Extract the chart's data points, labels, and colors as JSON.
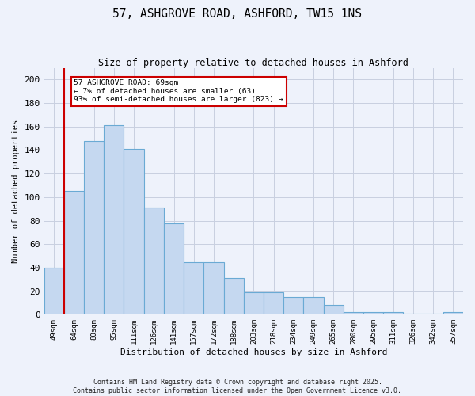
{
  "title": "57, ASHGROVE ROAD, ASHFORD, TW15 1NS",
  "subtitle": "Size of property relative to detached houses in Ashford",
  "xlabel": "Distribution of detached houses by size in Ashford",
  "ylabel": "Number of detached properties",
  "categories": [
    "49sqm",
    "64sqm",
    "80sqm",
    "95sqm",
    "111sqm",
    "126sqm",
    "141sqm",
    "157sqm",
    "172sqm",
    "188sqm",
    "203sqm",
    "218sqm",
    "234sqm",
    "249sqm",
    "265sqm",
    "280sqm",
    "295sqm",
    "311sqm",
    "326sqm",
    "342sqm",
    "357sqm"
  ],
  "values": [
    40,
    105,
    148,
    161,
    141,
    91,
    78,
    45,
    45,
    31,
    19,
    19,
    15,
    15,
    8,
    2,
    2,
    2,
    1,
    1,
    2
  ],
  "bar_color": "#c5d8f0",
  "bar_edge_color": "#6aaad4",
  "ylim": [
    0,
    210
  ],
  "yticks": [
    0,
    20,
    40,
    60,
    80,
    100,
    120,
    140,
    160,
    180,
    200
  ],
  "vline_x": 0.5,
  "vline_color": "#cc0000",
  "annotation_text": "57 ASHGROVE ROAD: 69sqm\n← 7% of detached houses are smaller (63)\n93% of semi-detached houses are larger (823) →",
  "annotation_box_color": "#ffffff",
  "annotation_box_edge": "#cc0000",
  "footer_line1": "Contains HM Land Registry data © Crown copyright and database right 2025.",
  "footer_line2": "Contains public sector information licensed under the Open Government Licence v3.0.",
  "background_color": "#eef2fb",
  "plot_background": "#eef2fb"
}
